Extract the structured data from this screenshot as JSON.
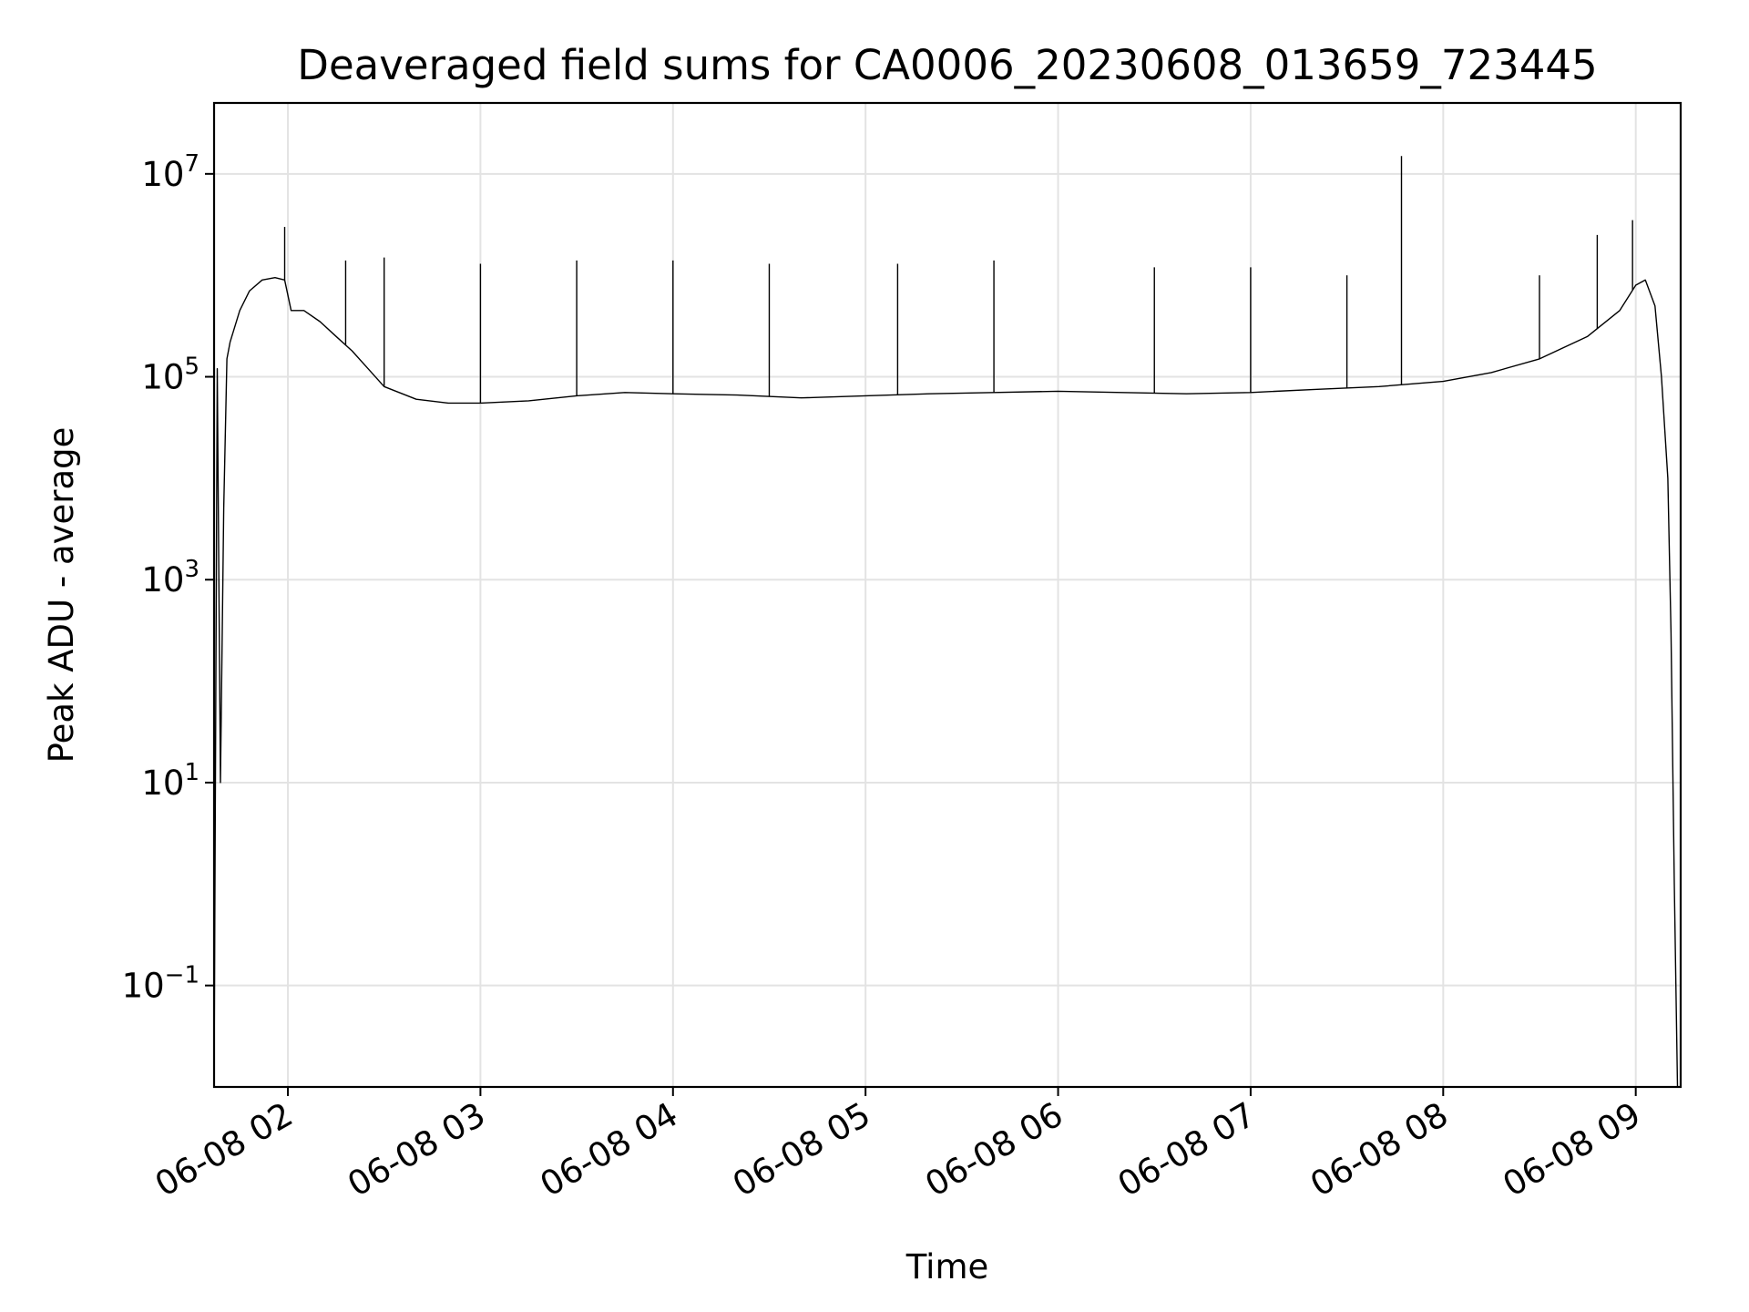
{
  "chart_data": {
    "type": "line",
    "title": "Deaveraged field sums for CA0006_20230608_013659_723445",
    "xlabel": "Time",
    "ylabel": "Peak ADU - average",
    "yscale": "log",
    "grid": true,
    "line_color": "#000000",
    "grid_color": "#e3e3e3",
    "xlim": [
      "2023-06-08 01:37",
      "2023-06-08 09:14"
    ],
    "ylim": [
      0.01,
      50000000
    ],
    "x_ticks": [
      {
        "value": "2023-06-08 02:00",
        "label": "06-08 02"
      },
      {
        "value": "2023-06-08 03:00",
        "label": "06-08 03"
      },
      {
        "value": "2023-06-08 04:00",
        "label": "06-08 04"
      },
      {
        "value": "2023-06-08 05:00",
        "label": "06-08 05"
      },
      {
        "value": "2023-06-08 06:00",
        "label": "06-08 06"
      },
      {
        "value": "2023-06-08 07:00",
        "label": "06-08 07"
      },
      {
        "value": "2023-06-08 08:00",
        "label": "06-08 08"
      },
      {
        "value": "2023-06-08 09:00",
        "label": "06-08 09"
      }
    ],
    "y_ticks": [
      {
        "value": 0.1,
        "base": "10",
        "exp": "−1"
      },
      {
        "value": 10,
        "base": "10",
        "exp": "1"
      },
      {
        "value": 1000,
        "base": "10",
        "exp": "3"
      },
      {
        "value": 100000,
        "base": "10",
        "exp": "5"
      },
      {
        "value": 10000000,
        "base": "10",
        "exp": "7"
      }
    ],
    "series": [
      {
        "x": [
          "2023-06-08 01:37",
          "2023-06-08 01:38",
          "2023-06-08 01:39",
          "2023-06-08 01:40",
          "2023-06-08 01:41",
          "2023-06-08 01:42",
          "2023-06-08 01:45",
          "2023-06-08 01:48",
          "2023-06-08 01:52",
          "2023-06-08 01:56",
          "2023-06-08 01:59",
          "2023-06-08 02:01",
          "2023-06-08 02:05",
          "2023-06-08 02:10",
          "2023-06-08 02:15",
          "2023-06-08 02:20",
          "2023-06-08 02:25",
          "2023-06-08 02:30",
          "2023-06-08 02:40",
          "2023-06-08 02:50",
          "2023-06-08 03:00",
          "2023-06-08 03:15",
          "2023-06-08 03:30",
          "2023-06-08 03:45",
          "2023-06-08 04:00",
          "2023-06-08 04:20",
          "2023-06-08 04:40",
          "2023-06-08 05:00",
          "2023-06-08 05:20",
          "2023-06-08 05:40",
          "2023-06-08 06:00",
          "2023-06-08 06:20",
          "2023-06-08 06:40",
          "2023-06-08 07:00",
          "2023-06-08 07:20",
          "2023-06-08 07:40",
          "2023-06-08 08:00",
          "2023-06-08 08:15",
          "2023-06-08 08:30",
          "2023-06-08 08:45",
          "2023-06-08 08:55",
          "2023-06-08 09:00",
          "2023-06-08 09:03",
          "2023-06-08 09:06",
          "2023-06-08 09:08",
          "2023-06-08 09:10",
          "2023-06-08 09:11",
          "2023-06-08 09:12",
          "2023-06-08 09:13"
        ],
        "y": [
          0.01,
          120000,
          10,
          5000,
          150000,
          220000,
          450000,
          700000,
          900000,
          950000,
          900000,
          450000,
          450000,
          350000,
          250000,
          180000,
          120000,
          80000,
          60000,
          55000,
          55000,
          58000,
          65000,
          70000,
          68000,
          66000,
          62000,
          65000,
          68000,
          70000,
          72000,
          70000,
          68000,
          70000,
          75000,
          80000,
          90000,
          110000,
          150000,
          250000,
          450000,
          800000,
          900000,
          500000,
          100000,
          10000,
          300,
          1,
          0.01
        ]
      }
    ],
    "spikes": [
      {
        "x": "2023-06-08 01:59",
        "y": 3000000
      },
      {
        "x": "2023-06-08 02:18",
        "y": 1400000
      },
      {
        "x": "2023-06-08 02:30",
        "y": 1500000
      },
      {
        "x": "2023-06-08 03:00",
        "y": 1300000
      },
      {
        "x": "2023-06-08 03:30",
        "y": 1400000
      },
      {
        "x": "2023-06-08 04:00",
        "y": 1400000
      },
      {
        "x": "2023-06-08 04:30",
        "y": 1300000
      },
      {
        "x": "2023-06-08 05:10",
        "y": 1300000
      },
      {
        "x": "2023-06-08 05:40",
        "y": 1400000
      },
      {
        "x": "2023-06-08 06:30",
        "y": 1200000
      },
      {
        "x": "2023-06-08 07:00",
        "y": 1200000
      },
      {
        "x": "2023-06-08 07:30",
        "y": 1000000
      },
      {
        "x": "2023-06-08 07:47",
        "y": 15000000
      },
      {
        "x": "2023-06-08 08:30",
        "y": 1000000
      },
      {
        "x": "2023-06-08 08:48",
        "y": 2500000
      },
      {
        "x": "2023-06-08 08:59",
        "y": 3500000
      }
    ]
  }
}
